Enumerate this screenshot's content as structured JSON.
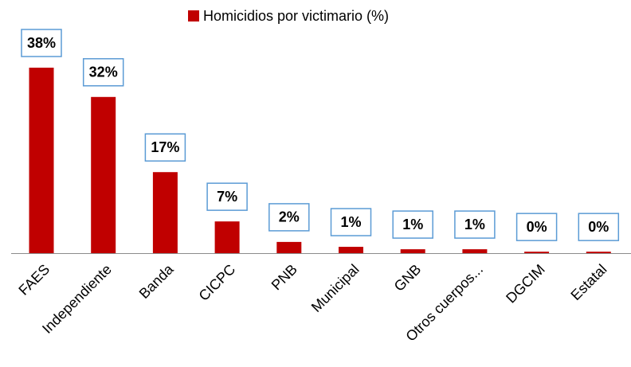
{
  "chart_data": {
    "type": "bar",
    "categories": [
      "FAES",
      "Independiente",
      "Banda",
      "CICPC",
      "PNB",
      "Municipal",
      "GNB",
      "Otros cuerpos...",
      "DGCIM",
      "Estatal"
    ],
    "series": [
      {
        "name": "Homicidios por victimario (%)",
        "color": "#c00000",
        "values": [
          38,
          32,
          16.6,
          6.5,
          2.3,
          1.3,
          0.8,
          0.8,
          0.3,
          0.3
        ],
        "value_labels": [
          "38%",
          "32%",
          "17%",
          "7%",
          "2%",
          "1%",
          "1%",
          "1%",
          "0%",
          "0%"
        ]
      }
    ],
    "legend": "top"
  }
}
